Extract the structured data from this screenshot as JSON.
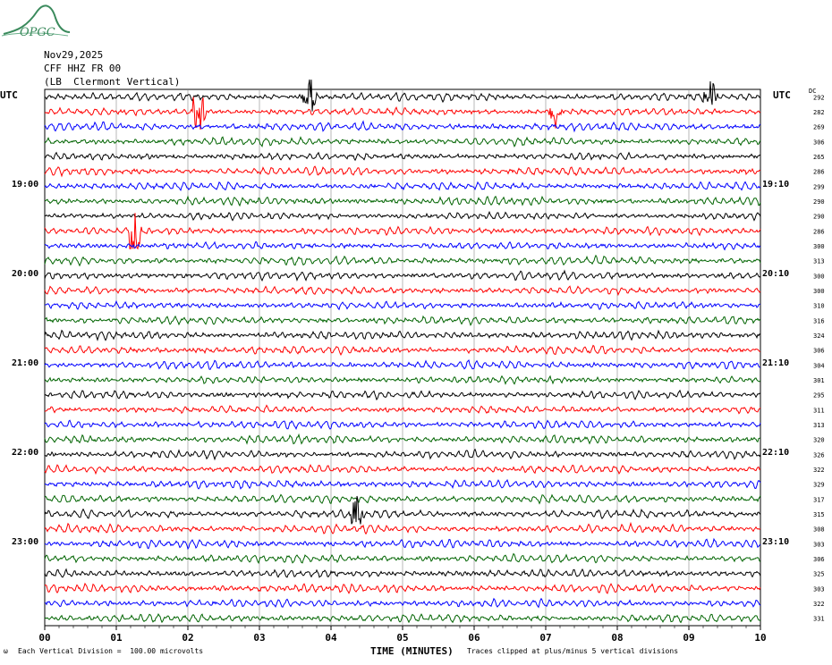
{
  "logo": {
    "text": "OPGC",
    "color": "#3a8a5c"
  },
  "header": {
    "date": "Nov29,2025",
    "station": "CFF HHZ FR 00",
    "location": "(LB  Clermont Vertical)"
  },
  "utc_left": "UTC",
  "utc_right": "UTC",
  "dc_label": "DC",
  "footer": {
    "scale": "Each Vertical Division =  100.00 microvolts",
    "xlabel": "TIME (MINUTES)",
    "clip": "Traces clipped at plus/minus 5 vertical divisions",
    "corner": "ω"
  },
  "chart_data": {
    "type": "line",
    "xlabel": "TIME (MINUTES)",
    "xlim": [
      0,
      10
    ],
    "x_ticks": [
      "00",
      "01",
      "02",
      "03",
      "04",
      "05",
      "06",
      "07",
      "08",
      "09",
      "10"
    ],
    "trace_colors": [
      "#000000",
      "#ff0000",
      "#0000ff",
      "#006400"
    ],
    "left_hour_labels": [
      {
        "row": 6,
        "text": "19:00"
      },
      {
        "row": 12,
        "text": "20:00"
      },
      {
        "row": 18,
        "text": "21:00"
      },
      {
        "row": 24,
        "text": "22:00"
      },
      {
        "row": 30,
        "text": "23:00"
      }
    ],
    "right_hour_labels": [
      {
        "row": 6,
        "text": "19:10"
      },
      {
        "row": 12,
        "text": "20:10"
      },
      {
        "row": 18,
        "text": "21:10"
      },
      {
        "row": 24,
        "text": "22:10"
      },
      {
        "row": 30,
        "text": "23:10"
      }
    ],
    "dc_offsets": [
      "292",
      "282",
      "269",
      "306",
      "265",
      "286",
      "299",
      "290",
      "290",
      "286",
      "300",
      "313",
      "300",
      "300",
      "310",
      "316",
      "324",
      "306",
      "304",
      "301",
      "295",
      "311",
      "313",
      "320",
      "326",
      "322",
      "329",
      "317",
      "315",
      "308",
      "303",
      "306",
      "325",
      "303",
      "322",
      "331"
    ],
    "events": [
      {
        "row": 1,
        "minute": 2.15,
        "amplitude": 2.2
      },
      {
        "row": 9,
        "minute": 1.25,
        "amplitude": 3.0
      },
      {
        "row": 28,
        "minute": 4.35,
        "amplitude": 1.6
      },
      {
        "row": 0,
        "minute": 3.7,
        "amplitude": 1.5
      },
      {
        "row": 1,
        "minute": 7.15,
        "amplitude": 1.3
      },
      {
        "row": 0,
        "minute": 9.3,
        "amplitude": 1.2
      }
    ]
  }
}
